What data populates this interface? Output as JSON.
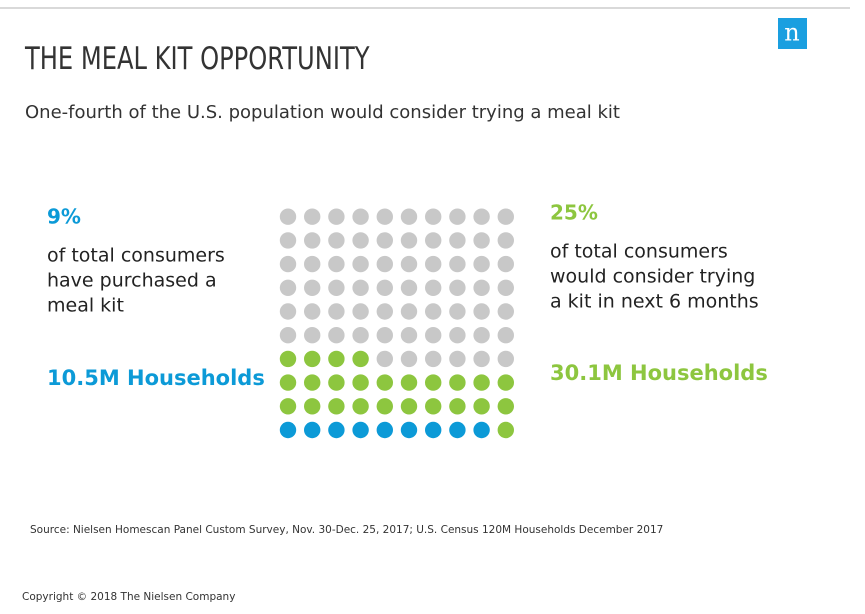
{
  "chart_data": {
    "type": "waffle",
    "title": "THE MEAL KIT OPPORTUNITY",
    "subtitle": "One-fourth of the U.S. population would consider trying a meal kit",
    "total": 100,
    "rest_color": "#c8c8c8",
    "series": [
      {
        "name": [
          "of total consumers",
          "have purchased a",
          "meal kit"
        ],
        "value": 9,
        "value_label": "9%",
        "color": "#0c9ad7",
        "households": "10.5M Households"
      },
      {
        "name": [
          "of total consumers",
          "would consider trying",
          "a kit in next 6 months"
        ],
        "value": 25,
        "value_label": "25%",
        "color": "#8dc63f",
        "households": "30.1M Households"
      }
    ],
    "source": "Source: Nielsen Homescan Panel Custom Survey, Nov. 30-Dec. 25, 2017; U.S. Census 120M Households December 2017",
    "copyright": "Copyright © 2018 The Nielsen Company",
    "logo": "n"
  }
}
